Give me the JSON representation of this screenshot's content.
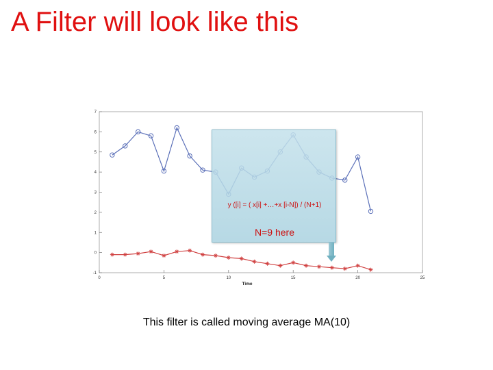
{
  "slide": {
    "title": "A Filter will look like this",
    "caption": "This filter is called moving average MA(10)"
  },
  "callout": {
    "formula": "y ([i] = ( x[i] +…+x [i-N]) / (N+1)",
    "note": "N=9 here"
  },
  "chart_data": {
    "type": "line",
    "xlabel": "Time",
    "ylabel": "",
    "xlim": [
      0,
      25
    ],
    "ylim": [
      -1,
      7
    ],
    "xticks": [
      0,
      5,
      10,
      15,
      20,
      25
    ],
    "yticks": [
      -1,
      0,
      1,
      2,
      3,
      4,
      5,
      6,
      7
    ],
    "grid": false,
    "series": [
      {
        "marker": "circle",
        "color": "#5a6fb8",
        "x": [
          1,
          2,
          3,
          4,
          5,
          6,
          7,
          8,
          9,
          10,
          11,
          12,
          13,
          14,
          15,
          16,
          17,
          18,
          19,
          20,
          21
        ],
        "y": [
          4.85,
          5.3,
          6.0,
          5.8,
          4.05,
          6.2,
          4.8,
          4.1,
          4.0,
          2.9,
          4.2,
          3.75,
          4.05,
          5.0,
          5.85,
          4.75,
          4.0,
          3.7,
          3.6,
          4.75,
          2.05
        ]
      },
      {
        "marker": "star",
        "color": "#d04040",
        "x": [
          1,
          2,
          3,
          4,
          5,
          6,
          7,
          8,
          9,
          10,
          11,
          12,
          13,
          14,
          15,
          16,
          17,
          18,
          19,
          20,
          21
        ],
        "y": [
          -0.1,
          -0.1,
          -0.05,
          0.05,
          -0.15,
          0.05,
          0.1,
          -0.1,
          -0.15,
          -0.25,
          -0.3,
          -0.45,
          -0.55,
          -0.65,
          -0.5,
          -0.65,
          -0.7,
          -0.75,
          -0.8,
          -0.65,
          -0.85
        ]
      }
    ]
  }
}
